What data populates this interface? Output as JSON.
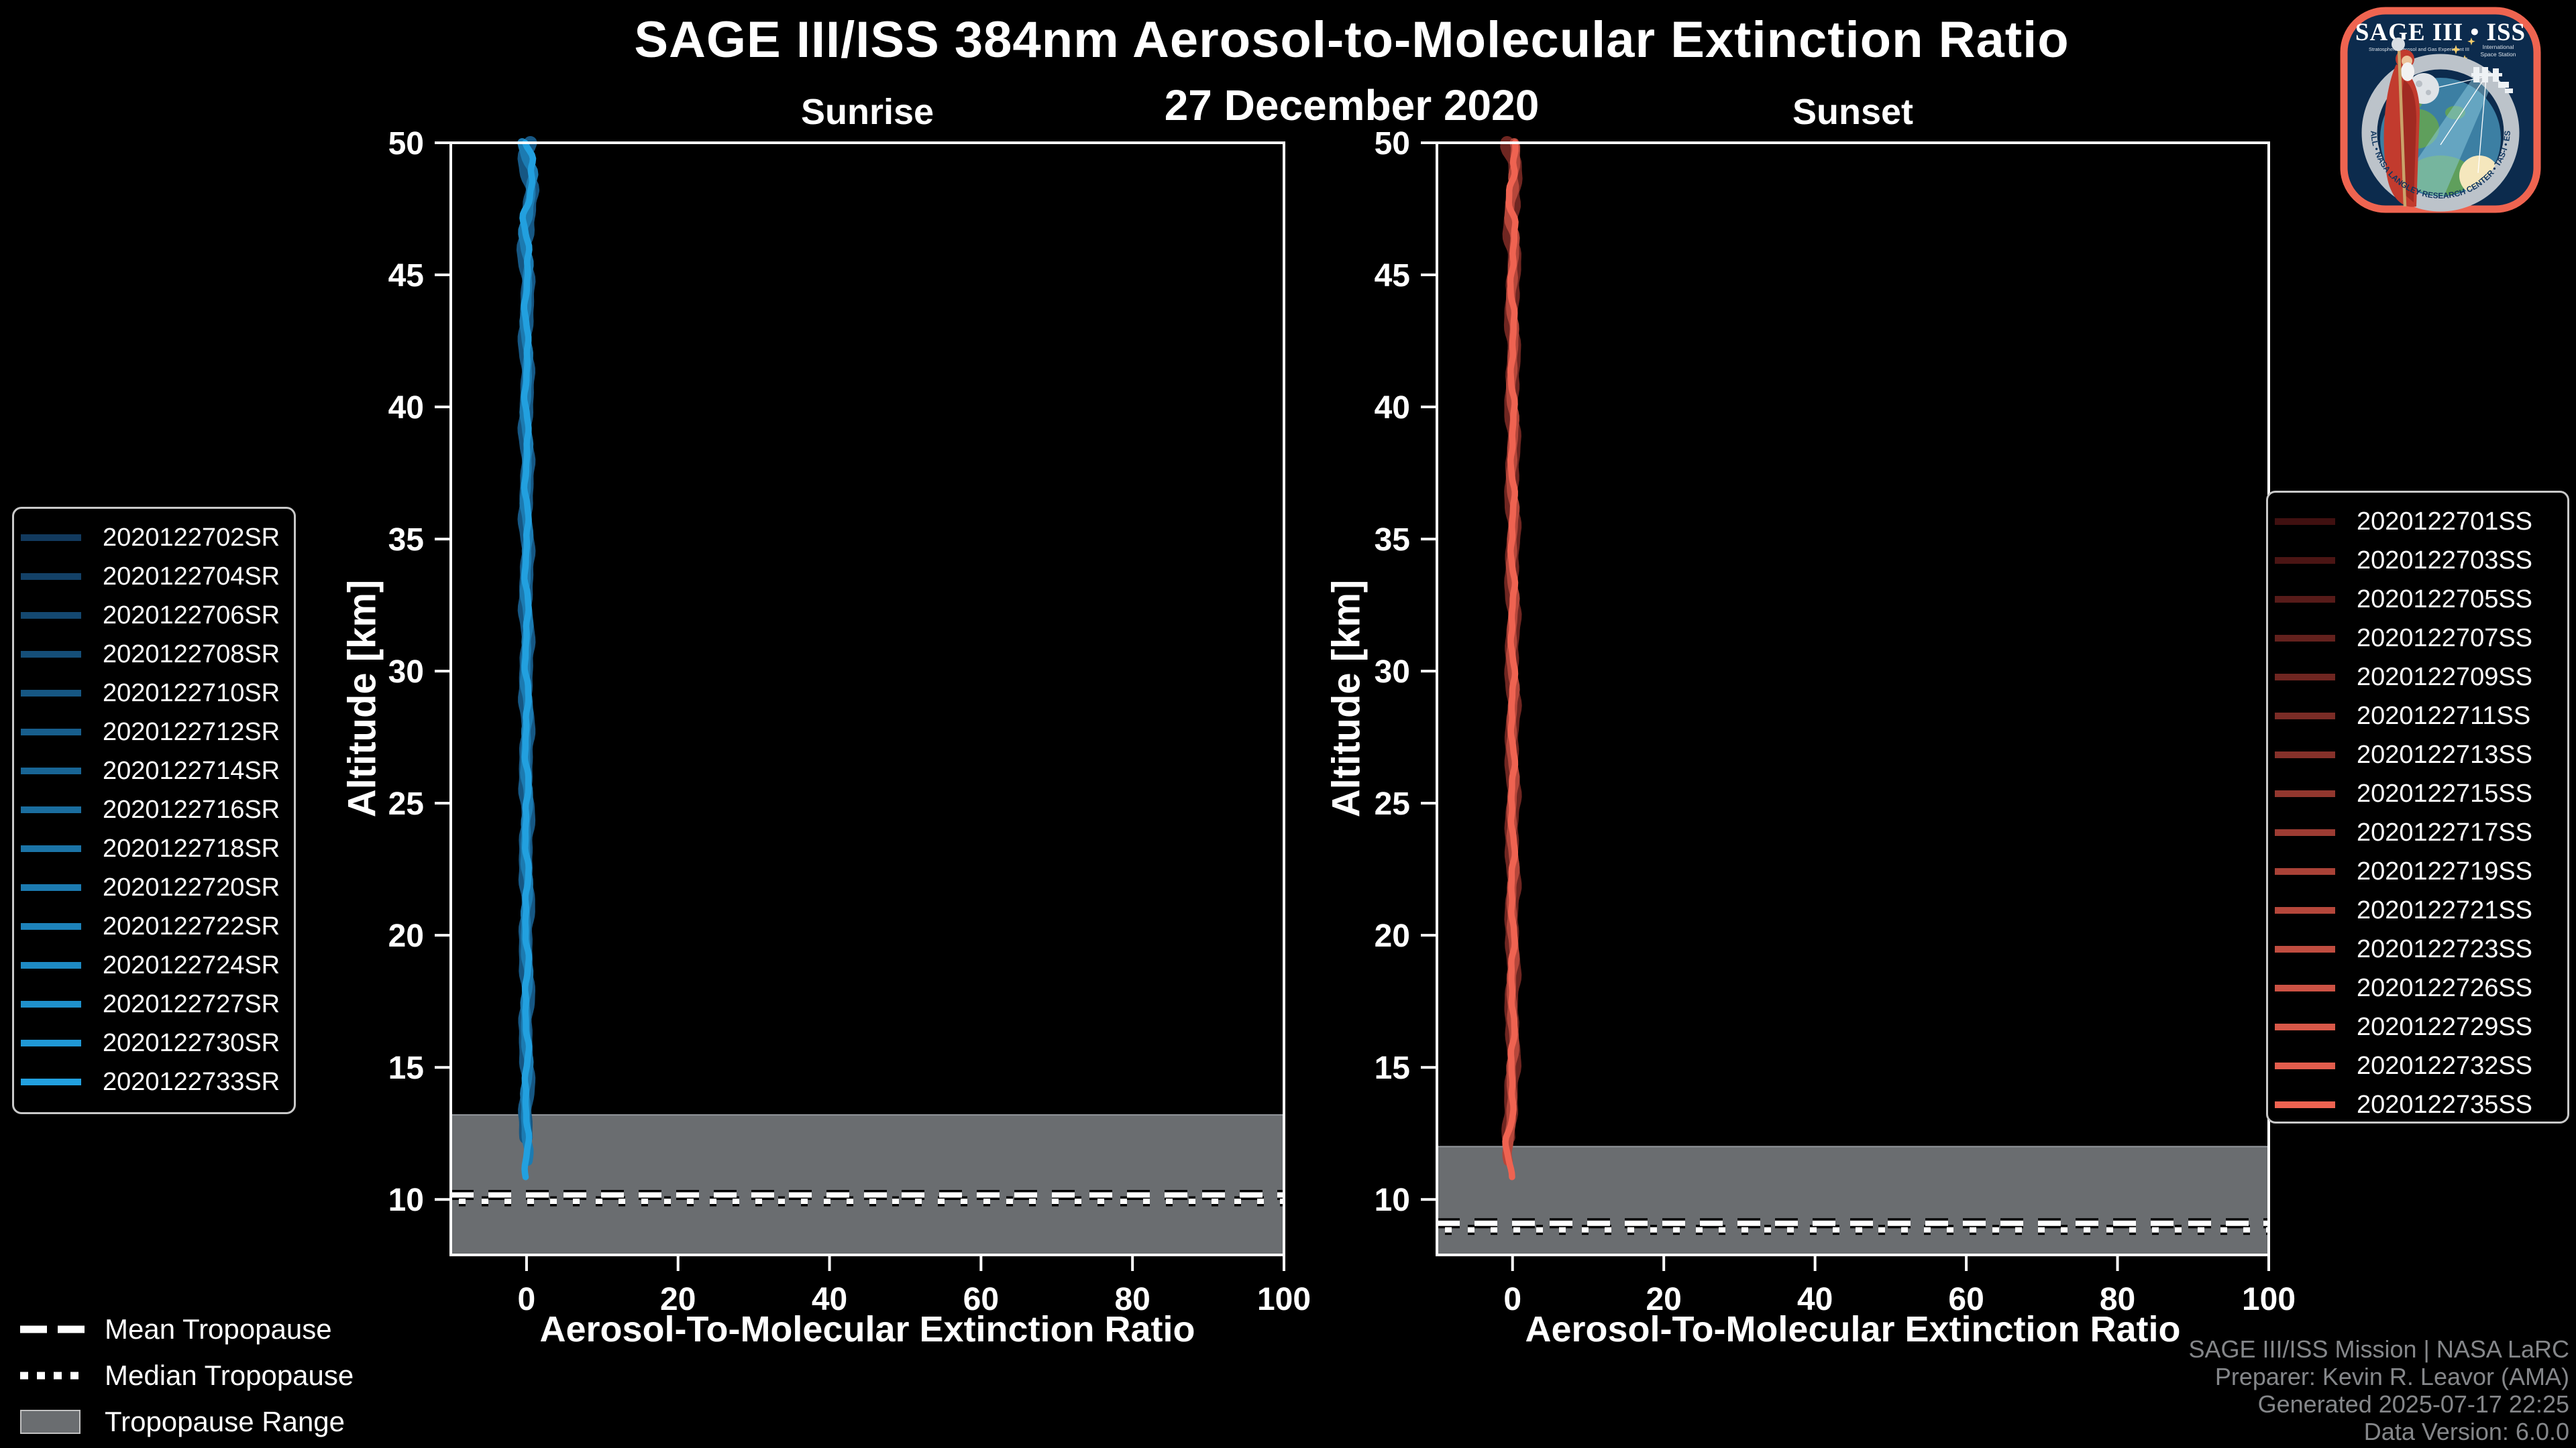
{
  "title": "SAGE III/ISS 384nm Aerosol-to-Molecular Extinction Ratio",
  "date": "27 December 2020",
  "panels": {
    "sunrise_title": "Sunrise",
    "sunset_title": "Sunset"
  },
  "axis": {
    "xlabel": "Aerosol-To-Molecular Extinction Ratio",
    "ylabel": "Altitude [km]"
  },
  "chart_data": [
    {
      "type": "line",
      "title": "Sunrise",
      "xlabel": "Aerosol-To-Molecular Extinction Ratio",
      "ylabel": "Altitude [km]",
      "xlim": [
        -10,
        100
      ],
      "ylim": [
        7.9,
        50
      ],
      "xticks": [
        0,
        20,
        40,
        60,
        80,
        100
      ],
      "yticks": [
        10,
        15,
        20,
        25,
        30,
        35,
        40,
        45,
        50
      ],
      "grid": false,
      "legend_position": "outside-left",
      "note": "15 sunrise extinction-ratio profiles, all approximately 0 from ~11 km to 50 km",
      "series": [
        {
          "label": "2020122702SR",
          "color": "#123a5e"
        },
        {
          "label": "2020122704SR",
          "color": "#134167"
        },
        {
          "label": "2020122706SR",
          "color": "#144870"
        },
        {
          "label": "2020122708SR",
          "color": "#154f79"
        },
        {
          "label": "2020122710SR",
          "color": "#165783"
        },
        {
          "label": "2020122712SR",
          "color": "#175e8c"
        },
        {
          "label": "2020122714SR",
          "color": "#186595"
        },
        {
          "label": "2020122716SR",
          "color": "#1a6d9e"
        },
        {
          "label": "2020122718SR",
          "color": "#1b74a7"
        },
        {
          "label": "2020122720SR",
          "color": "#1c7bb1"
        },
        {
          "label": "2020122722SR",
          "color": "#1d82ba"
        },
        {
          "label": "2020122724SR",
          "color": "#1e8ac3"
        },
        {
          "label": "2020122727SR",
          "color": "#1f91cc"
        },
        {
          "label": "2020122730SR",
          "color": "#2098d5"
        },
        {
          "label": "2020122733SR",
          "color": "#22a0df"
        }
      ],
      "profile": {
        "center_ratio": 0,
        "top_alt": 50,
        "tip_alt": 10.78,
        "wiggle_amp": 0.35,
        "top_extra_amp": 0.55,
        "bulge_alt": 48.8,
        "bulge_amp": 0.45,
        "bulge_sigma": 1.2,
        "seed": 3.1
      },
      "tropopause": {
        "mean_alt": 10.17,
        "median_alt": 9.93,
        "range_top_alt": 13.2,
        "range_bottom_alt": 7.9
      }
    },
    {
      "type": "line",
      "title": "Sunset",
      "xlabel": "Aerosol-To-Molecular Extinction Ratio",
      "ylabel": "Altitude [km]",
      "xlim": [
        -10,
        100
      ],
      "ylim": [
        7.9,
        50
      ],
      "xticks": [
        0,
        20,
        40,
        60,
        80,
        100
      ],
      "yticks": [
        10,
        15,
        20,
        25,
        30,
        35,
        40,
        45,
        50
      ],
      "grid": false,
      "legend_position": "outside-right",
      "note": "16 sunset extinction-ratio profiles, all approximately 0 from ~11 km to 50 km",
      "series": [
        {
          "label": "2020122701SS",
          "color": "#401010"
        },
        {
          "label": "2020122703SS",
          "color": "#4b1514"
        },
        {
          "label": "2020122705SS",
          "color": "#571b19"
        },
        {
          "label": "2020122707SS",
          "color": "#63211d"
        },
        {
          "label": "2020122709SS",
          "color": "#6f2621"
        },
        {
          "label": "2020122711SS",
          "color": "#7a2c26"
        },
        {
          "label": "2020122713SS",
          "color": "#86312a"
        },
        {
          "label": "2020122715SS",
          "color": "#92372e"
        },
        {
          "label": "2020122717SS",
          "color": "#9d3c33"
        },
        {
          "label": "2020122719SS",
          "color": "#a94237"
        },
        {
          "label": "2020122721SS",
          "color": "#b5473b"
        },
        {
          "label": "2020122723SS",
          "color": "#c04d40"
        },
        {
          "label": "2020122726SS",
          "color": "#cc5244"
        },
        {
          "label": "2020122729SS",
          "color": "#d85848"
        },
        {
          "label": "2020122732SS",
          "color": "#e35d4d"
        },
        {
          "label": "2020122735SS",
          "color": "#ef6351"
        }
      ],
      "profile": {
        "center_ratio": 0,
        "top_alt": 50,
        "tip_alt": 10.85,
        "wiggle_amp": 0.35,
        "top_extra_amp": 0.5,
        "bulge_alt": 12.2,
        "bulge_amp": -0.7,
        "bulge_sigma": 0.9,
        "seed": 7.7
      },
      "tropopause": {
        "mean_alt": 9.1,
        "median_alt": 8.85,
        "range_top_alt": 12.0,
        "range_bottom_alt": 7.9
      }
    }
  ],
  "tropopause_legend": {
    "mean": "Mean Tropopause",
    "median": "Median Tropopause",
    "range": "Tropopause Range"
  },
  "footer": {
    "line1": "SAGE III/ISS Mission | NASA LaRC",
    "line2": "Preparer: Kevin R. Leavor (AMA)",
    "line3": "Generated 2025-07-17 22:25",
    "line4": "Data Version: 6.0.0"
  },
  "logo": {
    "title": "SAGE III • ISS",
    "sub_left": "Stratospheric Aerosol and Gas Experiment III",
    "sub_right_line1": "International",
    "sub_right_line2": "Space Station",
    "ring_text": "BALL • NASA LANGLEY RESEARCH CENTER • TAS-I • ESA"
  },
  "colors": {
    "background": "#000000",
    "frame": "#ffffff",
    "tropopause_band": "#6a6d70",
    "band_edge": "#94989d",
    "footer_text": "#85878a",
    "sunrise_accent": "#22a0df",
    "sunset_accent": "#ef6351"
  }
}
